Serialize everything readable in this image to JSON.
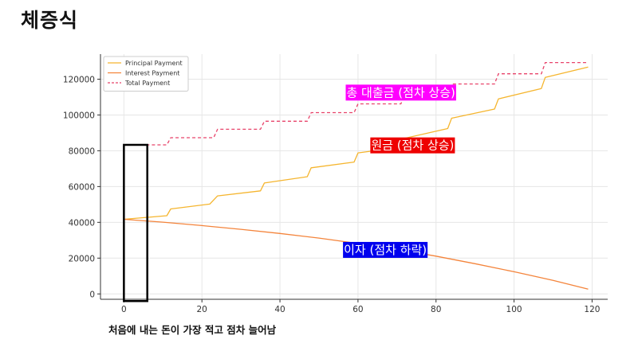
{
  "page": {
    "title": "체증식",
    "caption": "처음에 내는 돈이 가장 적고 점차 늘어남"
  },
  "colors": {
    "principal": "#f5b52e",
    "interest": "#f4843b",
    "total": "#e8436a",
    "annot_total_bg": "#ff00ff",
    "annot_principal_bg": "#ee0000",
    "annot_interest_bg": "#0000ee",
    "highlight_box": "#000000"
  },
  "chart_data": {
    "type": "line",
    "title": "",
    "xlabel": "",
    "ylabel": "",
    "xlim": [
      -6,
      124
    ],
    "ylim": [
      -3000,
      134000
    ],
    "x_ticks": [
      0,
      20,
      40,
      60,
      80,
      100,
      120
    ],
    "y_ticks": [
      0,
      20000,
      40000,
      60000,
      80000,
      100000,
      120000
    ],
    "grid": true,
    "legend_position": "top-left",
    "series": [
      {
        "name": "Principal Payment",
        "style": "solid",
        "color": "#f5b52e",
        "points": [
          [
            0,
            41700
          ],
          [
            11,
            43700
          ],
          [
            12,
            47500
          ],
          [
            22,
            50200
          ],
          [
            24,
            54800
          ],
          [
            35,
            57600
          ],
          [
            36,
            62000
          ],
          [
            47,
            65500
          ],
          [
            48,
            70500
          ],
          [
            59,
            73700
          ],
          [
            60,
            78800
          ],
          [
            71,
            82000
          ],
          [
            72,
            87000
          ],
          [
            83,
            92400
          ],
          [
            84,
            98200
          ],
          [
            95,
            103300
          ],
          [
            96,
            109000
          ],
          [
            107,
            114800
          ],
          [
            108,
            121000
          ],
          [
            119,
            126800
          ]
        ]
      },
      {
        "name": "Interest Payment",
        "style": "solid",
        "color": "#f4843b",
        "points": [
          [
            0,
            41700
          ],
          [
            10,
            40100
          ],
          [
            20,
            38200
          ],
          [
            30,
            36100
          ],
          [
            40,
            33800
          ],
          [
            50,
            31200
          ],
          [
            60,
            28200
          ],
          [
            70,
            24900
          ],
          [
            80,
            21100
          ],
          [
            90,
            16900
          ],
          [
            100,
            12400
          ],
          [
            110,
            7600
          ],
          [
            119,
            2700
          ]
        ]
      },
      {
        "name": "Total Payment",
        "style": "dashed",
        "color": "#e8436a",
        "points": [
          [
            0,
            83300
          ],
          [
            11,
            83300
          ],
          [
            12,
            87300
          ],
          [
            23,
            87300
          ],
          [
            24,
            92000
          ],
          [
            35,
            92000
          ],
          [
            36,
            96500
          ],
          [
            47,
            96500
          ],
          [
            48,
            101300
          ],
          [
            59,
            101300
          ],
          [
            60,
            106200
          ],
          [
            71,
            106200
          ],
          [
            72,
            111600
          ],
          [
            83,
            111600
          ],
          [
            84,
            117300
          ],
          [
            95,
            117300
          ],
          [
            96,
            123000
          ],
          [
            107,
            123000
          ],
          [
            108,
            129300
          ],
          [
            119,
            129300
          ]
        ]
      }
    ],
    "annotations": [
      {
        "text": "총 대출금 (점차 상승)",
        "x": 71,
        "y": 112500,
        "bg": "#ff00ff"
      },
      {
        "text": "원금 (점차 상승)",
        "x": 74,
        "y": 83000,
        "bg": "#ee0000"
      },
      {
        "text": "이자 (점차 하락)",
        "x": 67,
        "y": 24600,
        "bg": "#0000ee"
      }
    ],
    "highlight_box": {
      "x_range": [
        0,
        6
      ],
      "y_range": [
        -4000,
        83300
      ]
    }
  }
}
